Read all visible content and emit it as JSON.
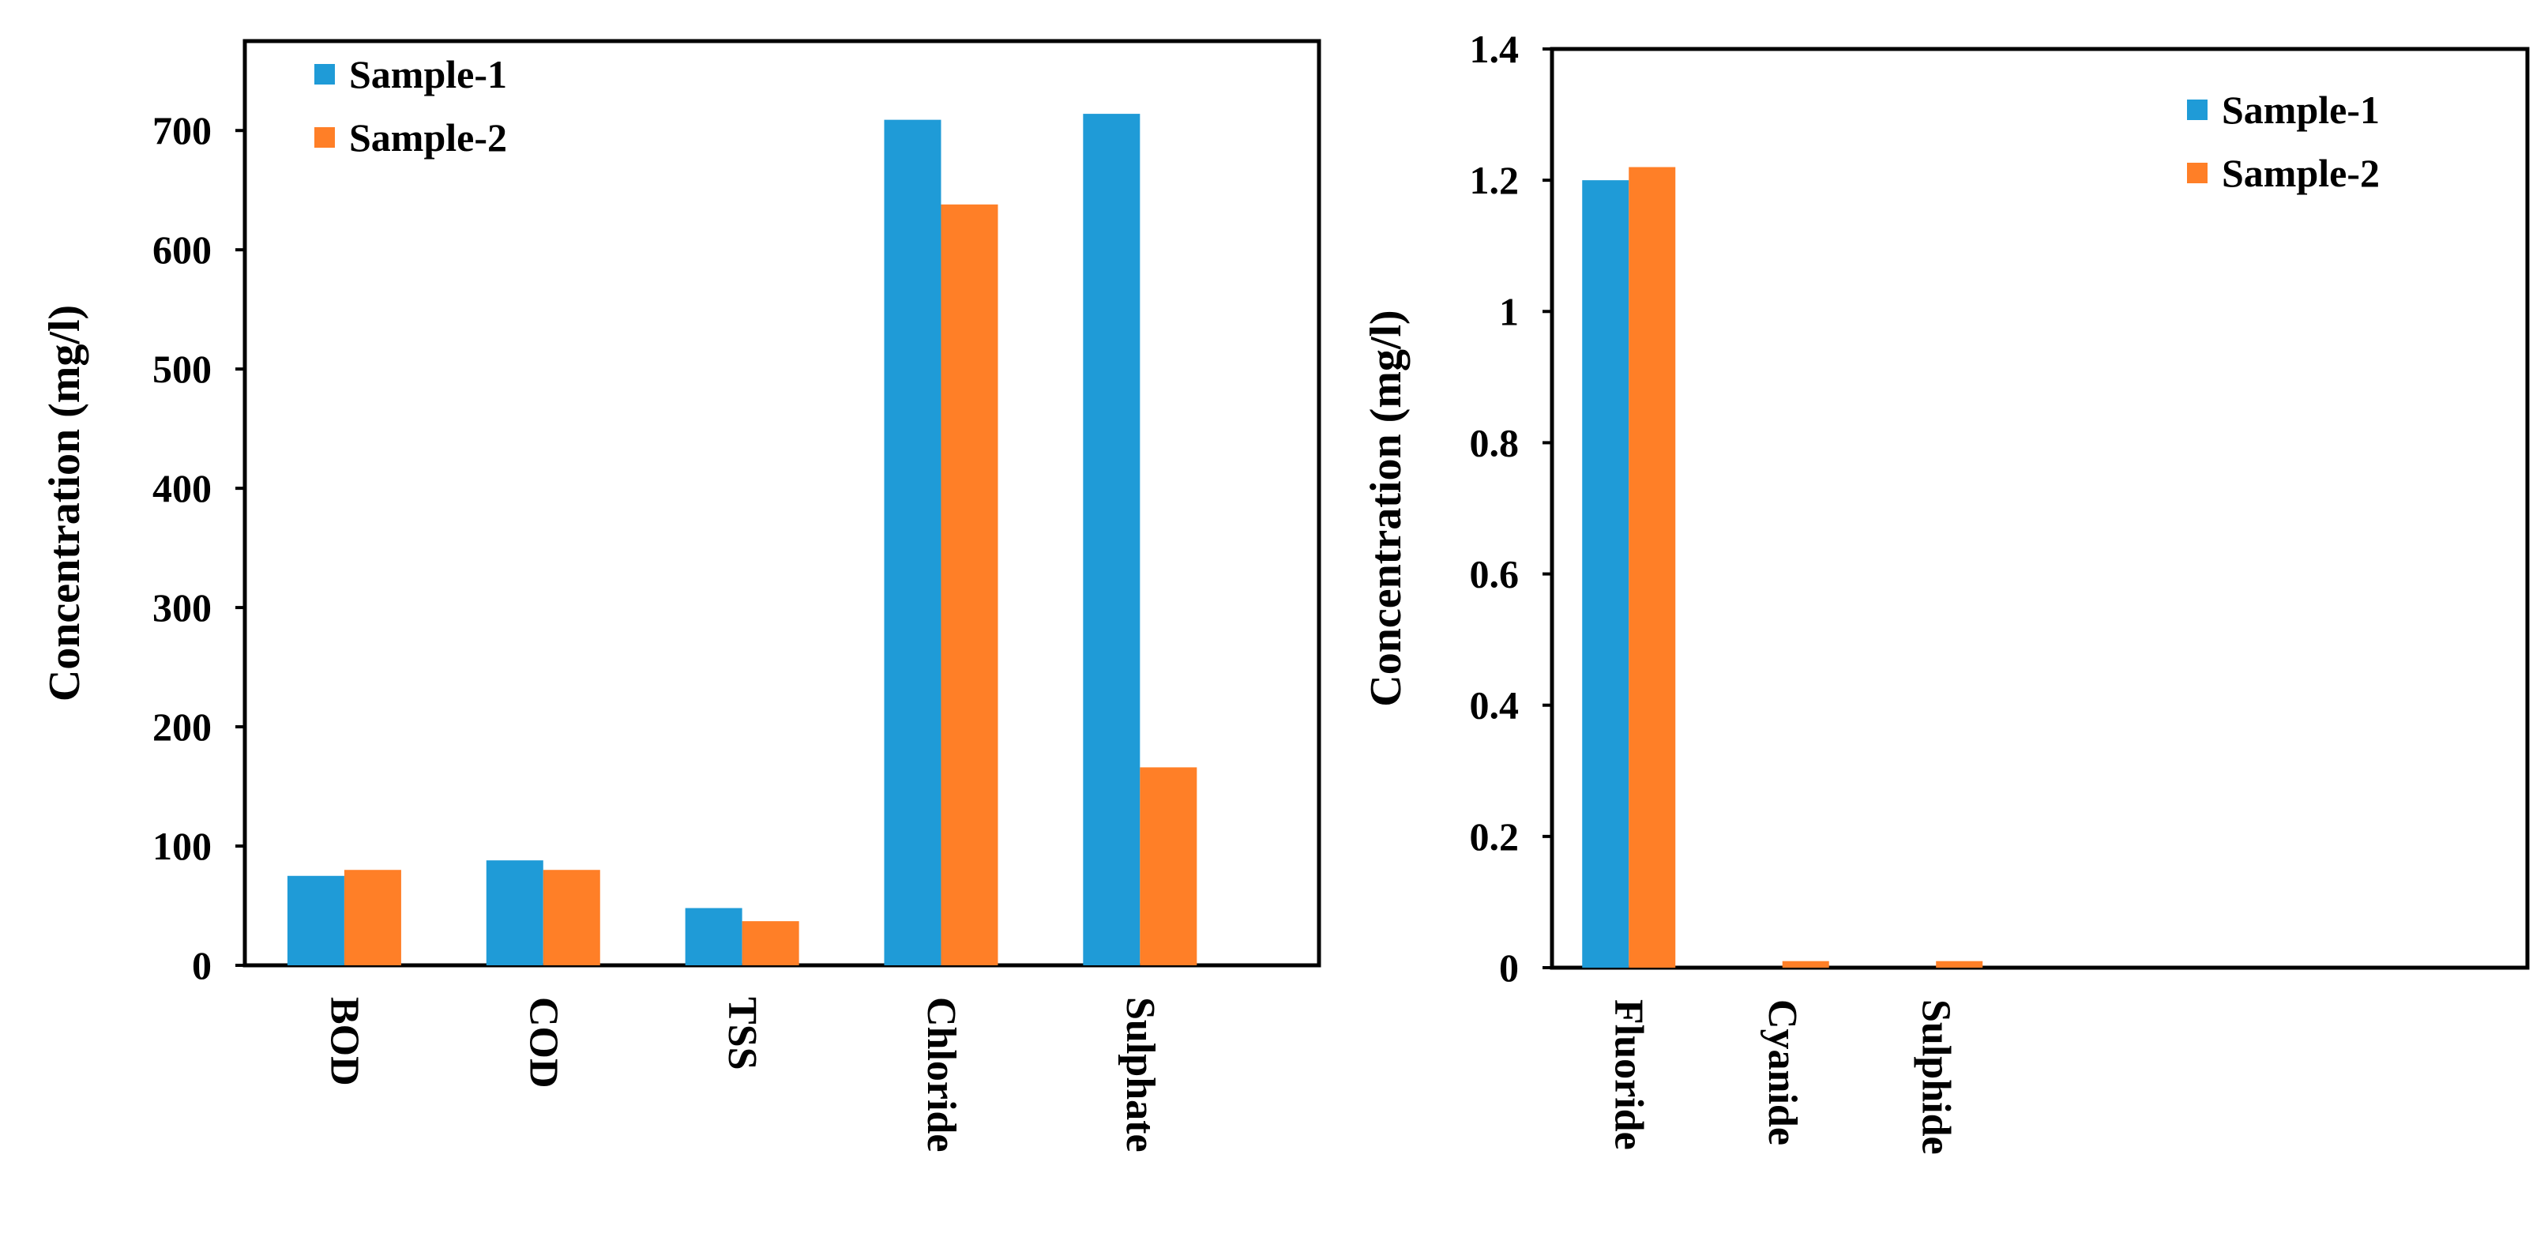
{
  "chart_data": [
    {
      "type": "bar",
      "title": "",
      "xlabel": "",
      "ylabel": "Concentration (mg/l)",
      "ylim": [
        0,
        775
      ],
      "yticks": [
        0,
        100,
        200,
        300,
        400,
        500,
        600,
        700
      ],
      "ytick_labels": [
        "0",
        "100",
        "200",
        "300",
        "400",
        "500",
        "600",
        "700"
      ],
      "categories": [
        "BOD",
        "COD",
        "TSS",
        "Chloride",
        "Sulphate"
      ],
      "n_slots": 5.4,
      "legend_position": "top-left",
      "grid": false,
      "series": [
        {
          "name": "Sample-1",
          "color": "#1f9bd7",
          "values": [
            75,
            88,
            48,
            709,
            714
          ]
        },
        {
          "name": "Sample-2",
          "color": "#ff7f27",
          "values": [
            80,
            80,
            37,
            638,
            166
          ]
        }
      ]
    },
    {
      "type": "bar",
      "title": "",
      "xlabel": "",
      "ylabel": "Concentration (mg/l)",
      "ylim": [
        0,
        1.4
      ],
      "yticks": [
        0,
        0.2,
        0.4,
        0.6,
        0.8,
        1,
        1.2,
        1.4
      ],
      "ytick_labels": [
        "0",
        "0.2",
        "0.4",
        "0.6",
        "0.8",
        "1",
        "1.2",
        "1.4"
      ],
      "categories": [
        "Fluoride",
        "Cyanide",
        "Sulphide"
      ],
      "n_slots": 6.35,
      "legend_position": "top-right",
      "grid": false,
      "series": [
        {
          "name": "Sample-1",
          "color": "#1f9bd7",
          "values": [
            1.2,
            0,
            0
          ]
        },
        {
          "name": "Sample-2",
          "color": "#ff7f27",
          "values": [
            1.22,
            0.01,
            0.01
          ]
        }
      ]
    }
  ]
}
